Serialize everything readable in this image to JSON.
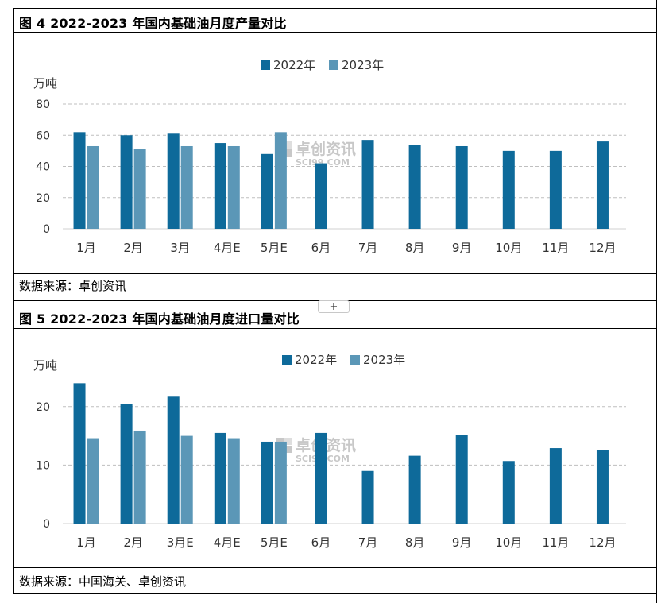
{
  "figures": [
    {
      "title": "图 4 2022-2023 年国内基础油月度产量对比",
      "source": "数据来源：卓创资讯",
      "watermark": {
        "cn": "卓创资讯",
        "en": "SCI99.COM"
      }
    },
    {
      "title": "图 5 2022-2023 年国内基础油月度进口量对比",
      "source": "数据来源：中国海关、卓创资讯",
      "watermark": {
        "cn": "卓创资讯",
        "en": "SCI99.COM"
      }
    }
  ],
  "insert_button": {
    "label": "+"
  },
  "colors": {
    "series_2022": "#0e6a9a",
    "series_2023": "#5b97b7",
    "grid": "#bfbfbf",
    "axis": "#d0d0d0",
    "watermark": "#c8c8c8"
  },
  "chart_data": [
    {
      "type": "bar",
      "unit_label": "万吨",
      "categories": [
        "1月",
        "2月",
        "3月",
        "4月E",
        "5月E",
        "6月",
        "7月",
        "8月",
        "9月",
        "10月",
        "11月",
        "12月"
      ],
      "series": [
        {
          "name": "2022年",
          "values": [
            62,
            60,
            61,
            55,
            48,
            42,
            57,
            54,
            53,
            50,
            50,
            56
          ]
        },
        {
          "name": "2023年",
          "values": [
            53,
            51,
            53,
            53,
            62,
            null,
            null,
            null,
            null,
            null,
            null,
            null
          ]
        }
      ],
      "ylim": [
        0,
        80
      ],
      "yticks": [
        0,
        20,
        40,
        60,
        80
      ],
      "grid": true,
      "legend": "top-center"
    },
    {
      "type": "bar",
      "unit_label": "万吨",
      "categories": [
        "1月",
        "2月",
        "3月E",
        "4月E",
        "5月E",
        "6月",
        "7月",
        "8月",
        "9月",
        "10月",
        "11月",
        "12月"
      ],
      "series": [
        {
          "name": "2022年",
          "values": [
            24,
            20.5,
            21.7,
            15.5,
            14,
            15.5,
            9,
            11.6,
            15.1,
            10.7,
            12.9,
            12.5
          ]
        },
        {
          "name": "2023年",
          "values": [
            14.6,
            15.9,
            15,
            14.6,
            14,
            null,
            null,
            null,
            null,
            null,
            null,
            null
          ]
        }
      ],
      "ylim": [
        0,
        25
      ],
      "yticks": [
        0,
        10,
        20
      ],
      "grid": true,
      "legend": "top-center"
    }
  ]
}
